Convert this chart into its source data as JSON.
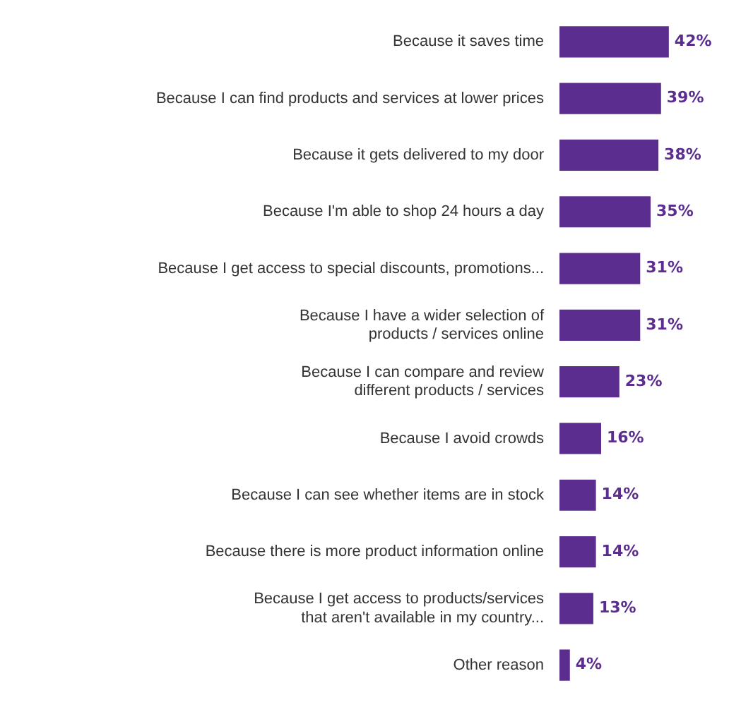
{
  "chart_data": {
    "type": "bar",
    "orientation": "horizontal",
    "categories": [
      "Because it saves time",
      "Because I can find products and services at lower prices",
      "Because it gets delivered to my door",
      "Because I'm able to shop 24 hours a day",
      "Because I get access to special discounts, promotions...",
      "Because I have a wider selection of\nproducts / services online",
      "Because I can compare and review\ndifferent products / services",
      "Because I avoid crowds",
      "Because I can see whether items are in stock",
      "Because there is more product information online",
      "Because I get access to products/services\nthat aren't available in my country...",
      "Other reason"
    ],
    "values": [
      42,
      39,
      38,
      35,
      31,
      31,
      23,
      16,
      14,
      14,
      13,
      4
    ],
    "value_labels": [
      "42%",
      "39%",
      "38%",
      "35%",
      "31%",
      "31%",
      "23%",
      "16%",
      "14%",
      "14%",
      "13%",
      "4%"
    ],
    "color": "#5b2d8e",
    "grid": false,
    "legend": false
  }
}
